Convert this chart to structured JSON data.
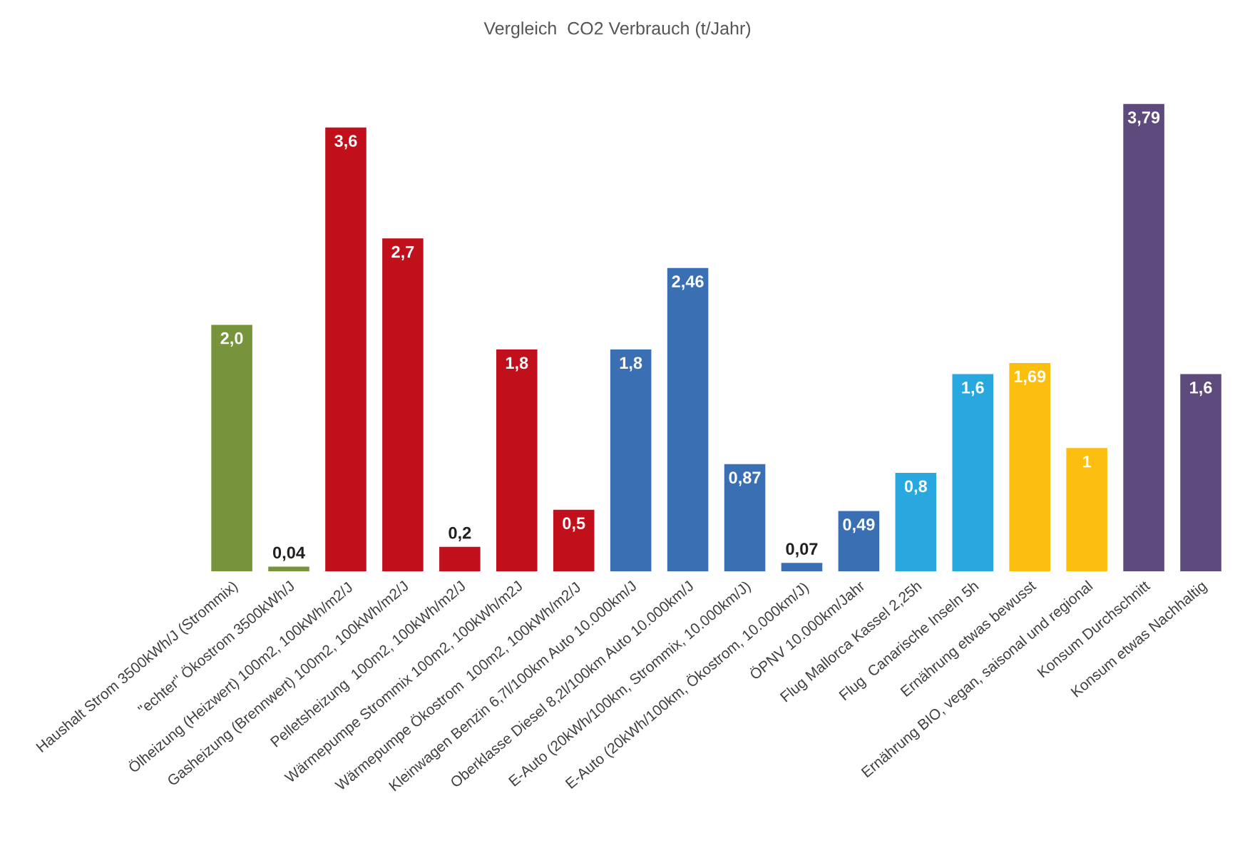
{
  "chart_data": {
    "type": "bar",
    "title": "Vergleich  CO2 Verbrauch (t/Jahr)",
    "categories": [
      "Haushalt Strom 3500kWh/J (Strommix)",
      "\"echter\" Ökostrom 3500kWh/J",
      "Ölheizung (Heizwert) 100m2, 100kWh/m2/J",
      "Gasheizung (Brennwert) 100m2, 100kWh/m2/J",
      "Pelletsheizung  100m2, 100kWh/m2/J",
      "Wärmepumpe Strommix 100m2, 100kWh/m2J",
      "Wärmepumpe Ökostrom  100m2, 100kWh/m2/J",
      "Kleinwagen Benzin 6,7l/100km Auto 10.000km/J",
      "Oberklasse Diesel 8,2l/100km Auto 10.000km/J",
      "E-Auto (20kWh/100km, Strommix, 10.000km/J)",
      "E-Auto (20kWh/100km, Ökostrom, 10.000km/J)",
      "ÖPNV 10.000km/Jahr",
      "Flug Mallorca Kassel 2,25h",
      "Flug  Canarische Inseln 5h",
      "Ernährung etwas bewusst",
      "Ernährung BIO, vegan, saisonal und regional",
      "Konsum Durchschnitt",
      "Konsum etwas Nachhaltig"
    ],
    "values": [
      2.0,
      0.04,
      3.6,
      2.7,
      0.2,
      1.8,
      0.5,
      1.8,
      2.46,
      0.87,
      0.07,
      0.49,
      0.8,
      1.6,
      1.69,
      1,
      3.79,
      1.6
    ],
    "value_labels": [
      "2,0",
      "0,04",
      "3,6",
      "2,7",
      "0,2",
      "1,8",
      "0,5",
      "1,8",
      "2,46",
      "0,87",
      "0,07",
      "0,49",
      "0,8",
      "1,6",
      "1,69",
      "1",
      "3,79",
      "1,6"
    ],
    "colors": [
      "#77933c",
      "#77933c",
      "#c0101c",
      "#c0101c",
      "#c0101c",
      "#c0101c",
      "#c0101c",
      "#3b6fb3",
      "#3b6fb3",
      "#3b6fb3",
      "#3b6fb3",
      "#3b6fb3",
      "#29a8e0",
      "#29a8e0",
      "#fdbf0f",
      "#fdbf0f",
      "#5e4a7c",
      "#5e4a7c"
    ],
    "grid": false,
    "legend": false
  }
}
